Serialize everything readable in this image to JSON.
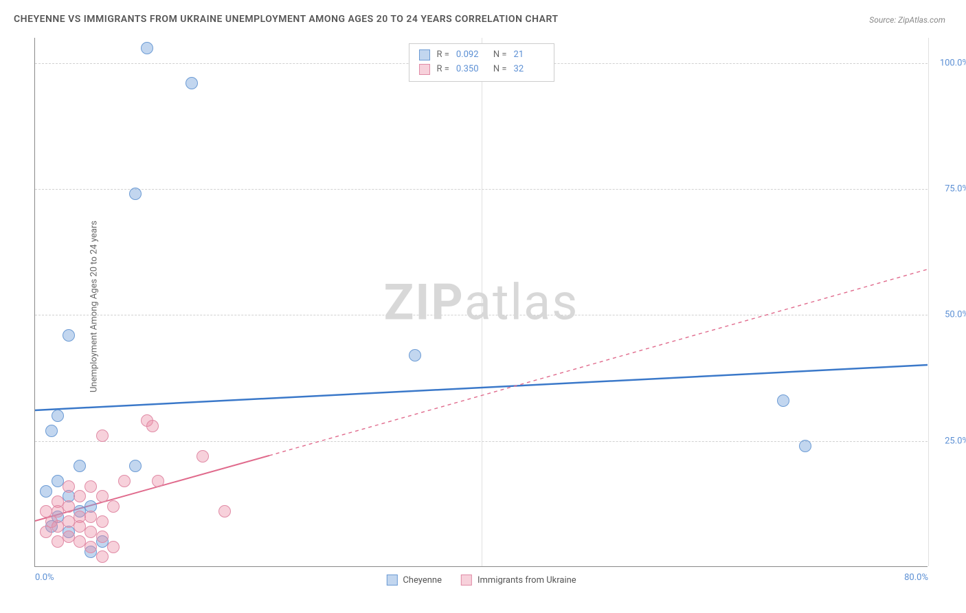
{
  "title": "CHEYENNE VS IMMIGRANTS FROM UKRAINE UNEMPLOYMENT AMONG AGES 20 TO 24 YEARS CORRELATION CHART",
  "source": "Source: ZipAtlas.com",
  "ylabel": "Unemployment Among Ages 20 to 24 years",
  "watermark_a": "ZIP",
  "watermark_b": "atlas",
  "chart": {
    "type": "scatter",
    "background_color": "#ffffff",
    "grid_color": "#d0d0d0",
    "xlim": [
      0,
      80
    ],
    "ylim": [
      0,
      105
    ],
    "x_ticks": [
      0,
      40,
      80
    ],
    "x_tick_labels": [
      "0.0%",
      "",
      "80.0%"
    ],
    "y_ticks": [
      25,
      50,
      75,
      100
    ],
    "y_tick_labels": [
      "25.0%",
      "50.0%",
      "75.0%",
      "100.0%"
    ],
    "axis_label_color": "#5b8fd4",
    "axis_label_fontsize": 13
  },
  "series": [
    {
      "name": "Cheyenne",
      "color_fill": "rgba(120,165,220,0.45)",
      "color_stroke": "#6a9ad4",
      "marker_radius": 9,
      "line_color": "#3a78c9",
      "line_width": 2.5,
      "line_dash": "none",
      "trend_start": [
        0,
        31
      ],
      "trend_solid_end": [
        80,
        40
      ],
      "trend_dash_end": [
        80,
        40
      ],
      "stats": {
        "R": "0.092",
        "N": "21"
      },
      "points": [
        [
          10,
          103
        ],
        [
          14,
          96
        ],
        [
          9,
          74
        ],
        [
          3,
          46
        ],
        [
          34,
          42
        ],
        [
          2,
          30
        ],
        [
          1.5,
          27
        ],
        [
          67,
          33
        ],
        [
          69,
          24
        ],
        [
          4,
          20
        ],
        [
          9,
          20
        ],
        [
          2,
          17
        ],
        [
          1,
          15
        ],
        [
          3,
          14
        ],
        [
          5,
          12
        ],
        [
          4,
          11
        ],
        [
          2,
          10
        ],
        [
          1.5,
          8
        ],
        [
          3,
          7
        ],
        [
          5,
          3
        ],
        [
          6,
          5
        ]
      ]
    },
    {
      "name": "Immigrants from Ukraine",
      "color_fill": "rgba(235,140,165,0.40)",
      "color_stroke": "#e08aa5",
      "marker_radius": 9,
      "line_color": "#e06a8c",
      "line_width": 2,
      "line_dash": "4,4",
      "trend_start": [
        0,
        9
      ],
      "trend_solid_end": [
        21,
        22
      ],
      "trend_dash_end": [
        80,
        59
      ],
      "stats": {
        "R": "0.350",
        "N": "32"
      },
      "points": [
        [
          10,
          29
        ],
        [
          10.5,
          28
        ],
        [
          6,
          26
        ],
        [
          15,
          22
        ],
        [
          8,
          17
        ],
        [
          11,
          17
        ],
        [
          3,
          16
        ],
        [
          5,
          16
        ],
        [
          4,
          14
        ],
        [
          6,
          14
        ],
        [
          2,
          13
        ],
        [
          3,
          12
        ],
        [
          7,
          12
        ],
        [
          17,
          11
        ],
        [
          1,
          11
        ],
        [
          2,
          11
        ],
        [
          4,
          10
        ],
        [
          5,
          10
        ],
        [
          1.5,
          9
        ],
        [
          3,
          9
        ],
        [
          6,
          9
        ],
        [
          2,
          8
        ],
        [
          4,
          8
        ],
        [
          5,
          7
        ],
        [
          1,
          7
        ],
        [
          3,
          6
        ],
        [
          6,
          6
        ],
        [
          2,
          5
        ],
        [
          4,
          5
        ],
        [
          5,
          4
        ],
        [
          7,
          4
        ],
        [
          6,
          2
        ]
      ]
    }
  ],
  "stats_legend_labels": {
    "R": "R =",
    "N": "N ="
  },
  "bottom_legend": [
    "Cheyenne",
    "Immigrants from Ukraine"
  ]
}
